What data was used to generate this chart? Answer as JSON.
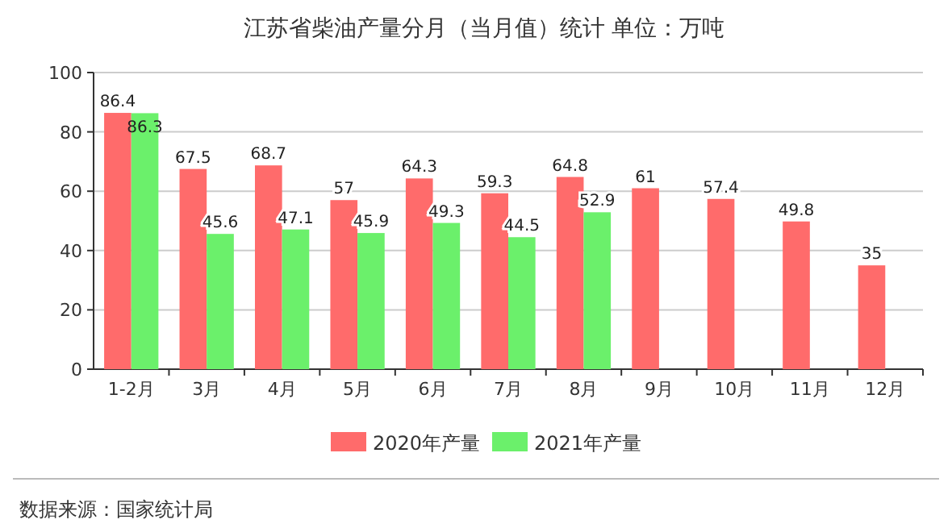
{
  "chart_data": {
    "type": "bar",
    "title": "江苏省柴油产量分月（当月值）统计 单位：万吨",
    "categories": [
      "1-2月",
      "3月",
      "4月",
      "5月",
      "6月",
      "7月",
      "8月",
      "9月",
      "10月",
      "11月",
      "12月"
    ],
    "series": [
      {
        "name": "2020年产量",
        "color": "#ff6b6b",
        "values": [
          86.4,
          67.5,
          68.7,
          57,
          64.3,
          59.3,
          64.8,
          61,
          57.4,
          49.8,
          35
        ]
      },
      {
        "name": "2021年产量",
        "color": "#6bf06b",
        "values": [
          86.3,
          45.6,
          47.1,
          45.9,
          49.3,
          44.5,
          52.9,
          null,
          null,
          null,
          null
        ]
      }
    ],
    "ylim": [
      0,
      100
    ],
    "yticks": [
      0,
      20,
      40,
      60,
      80,
      100
    ],
    "grid": "y",
    "legend": "bottom",
    "data_labels": true,
    "annotations": [
      "数据来源：国家统计局"
    ]
  }
}
